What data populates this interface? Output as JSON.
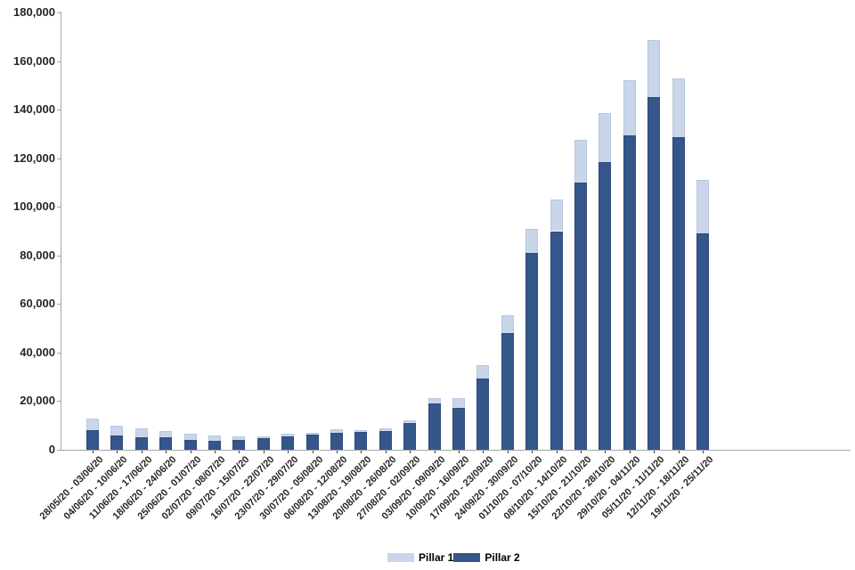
{
  "chart_data": {
    "type": "bar",
    "stacked": true,
    "title": "",
    "xlabel": "",
    "ylabel": "",
    "categories": [
      "28/05/20 - 03/06/20",
      "04/06/20 - 10/06/20",
      "11/06/20 - 17/06/20",
      "18/06/20 - 24/06/20",
      "25/06/20 - 01/07/20",
      "02/07/20 - 08/07/20",
      "09/07/20 - 15/07/20",
      "16/07/20 - 22/07/20",
      "23/07/20 - 29/07/20",
      "30/07/20 - 05/08/20",
      "06/08/20 - 12/08/20",
      "13/08/20 - 19/08/20",
      "20/08/20 - 26/08/20",
      "27/08/20 - 02/09/20",
      "03/09/20 - 09/09/20",
      "10/09/20 - 16/09/20",
      "17/09/20 - 23/09/20",
      "24/09/20 - 30/09/20",
      "01/10/20 - 07/10/20",
      "08/10/20 - 14/10/20",
      "15/10/20 - 21/10/20",
      "22/10/20 - 28/10/20",
      "29/10/20 - 04/11/20",
      "05/11/20 - 11/11/20",
      "12/11/20 - 18/11/20",
      "19/11/20 - 25/11/20"
    ],
    "series": [
      {
        "name": "Pillar 1",
        "color": "#c9d6e9",
        "border_color": "#b5c8e0",
        "values": [
          4800,
          3800,
          3500,
          2600,
          2400,
          2000,
          1400,
          900,
          1200,
          900,
          1200,
          1000,
          1200,
          1200,
          2200,
          4300,
          5700,
          7300,
          10000,
          13000,
          17500,
          20000,
          22500,
          23500,
          24500,
          22000
        ]
      },
      {
        "name": "Pillar 2",
        "color": "#35568a",
        "border_color": "#2e4b7a",
        "values": [
          8000,
          6000,
          5200,
          5000,
          4100,
          3800,
          4100,
          4700,
          5500,
          6100,
          7100,
          7200,
          7700,
          11000,
          18900,
          17100,
          29300,
          48000,
          81000,
          90000,
          110000,
          118500,
          129500,
          145000,
          128500,
          89000
        ]
      }
    ],
    "stack_bottom_to_top": [
      "Pillar 2",
      "Pillar 1"
    ],
    "ylim": [
      0,
      180000
    ],
    "y_tick_step": 20000,
    "y_tick_labels": [
      "0",
      "20,000",
      "40,000",
      "60,000",
      "80,000",
      "100,000",
      "120,000",
      "140,000",
      "160,000",
      "180,000"
    ],
    "grid": "off",
    "legend_position": "bottom-center",
    "axis_color": "#a6a6a6",
    "text_color": "#262626"
  }
}
